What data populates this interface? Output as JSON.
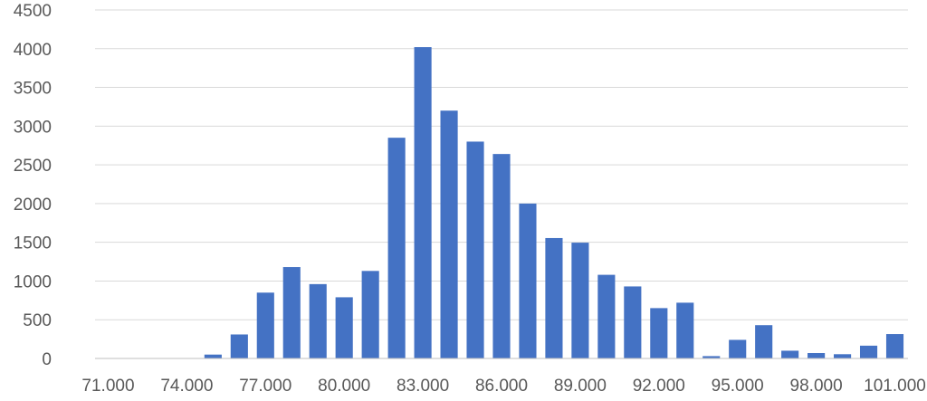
{
  "chart_data": {
    "type": "bar",
    "title": "",
    "xlabel": "",
    "ylabel": "",
    "ylim": [
      0,
      4500
    ],
    "yticks": [
      0,
      500,
      1000,
      1500,
      2000,
      2500,
      3000,
      3500,
      4000,
      4500
    ],
    "yticks_labels": [
      "0",
      "500",
      "1000",
      "1500",
      "2000",
      "2500",
      "3000",
      "3500",
      "4000",
      "4500"
    ],
    "grid": true,
    "legend": "none",
    "bar_color": "#4472C4",
    "categories": [
      "71.000",
      "72.000",
      "73.000",
      "74.000",
      "75.000",
      "76.000",
      "77.000",
      "78.000",
      "79.000",
      "80.000",
      "81.000",
      "82.000",
      "83.000",
      "84.000",
      "85.000",
      "86.000",
      "87.000",
      "88.000",
      "89.000",
      "90.000",
      "91.000",
      "92.000",
      "93.000",
      "94.000",
      "95.000",
      "96.000",
      "97.000",
      "98.000",
      "99.000",
      "100.000",
      "101.000"
    ],
    "visible_x_labels": [
      "71.000",
      "74.000",
      "77.000",
      "80.000",
      "83.000",
      "86.000",
      "89.000",
      "92.000",
      "95.000",
      "98.000",
      "101.000"
    ],
    "values": [
      0,
      0,
      0,
      0,
      50,
      310,
      850,
      1180,
      960,
      790,
      1130,
      2850,
      4020,
      3200,
      2800,
      2640,
      2000,
      1555,
      1495,
      1080,
      930,
      650,
      720,
      30,
      240,
      430,
      100,
      70,
      55,
      165,
      315
    ]
  }
}
